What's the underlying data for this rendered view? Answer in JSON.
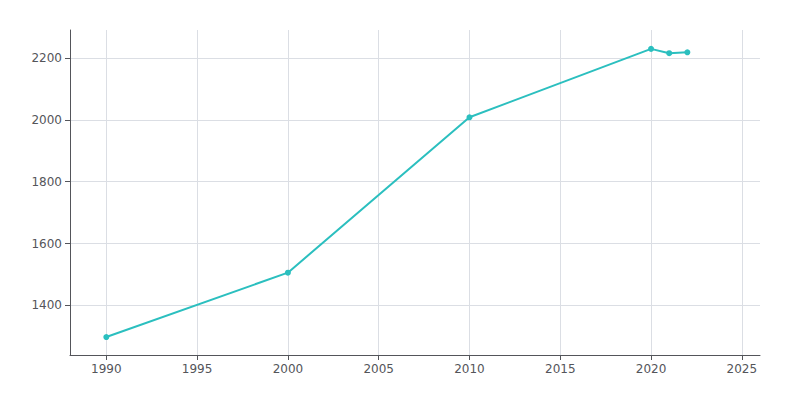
{
  "chart_data": {
    "type": "line",
    "x": [
      1990,
      2000,
      2010,
      2020,
      2021,
      2022
    ],
    "values": [
      1298,
      1506,
      2008,
      2229,
      2215,
      2218
    ],
    "color": "#2bbfbf",
    "marker": "circle",
    "xlim": [
      1988,
      2026
    ],
    "ylim": [
      1240,
      2290
    ],
    "xticks": [
      1990,
      1995,
      2000,
      2005,
      2010,
      2015,
      2020,
      2025
    ],
    "yticks": [
      1400,
      1600,
      1800,
      2000,
      2200
    ],
    "grid": true
  }
}
